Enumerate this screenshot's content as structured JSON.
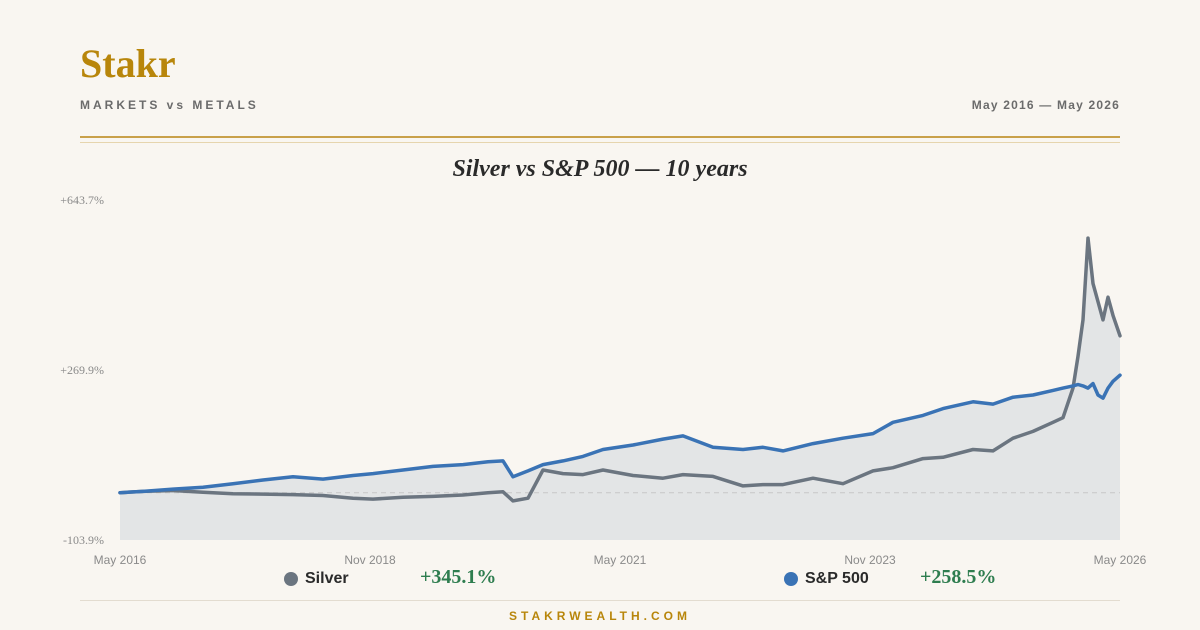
{
  "header": {
    "brand": "Stakr",
    "subtitle": "MARKETS vs METALS",
    "date_range": "May 2016 — May 2026"
  },
  "colors": {
    "brand": "#b8860b",
    "silver": "#6b7580",
    "sp500": "#3a73b5",
    "positive": "#2e7d4f"
  },
  "chart_data": {
    "type": "line",
    "title": "Silver vs S&P 500 — 10 years",
    "xlabel": "",
    "ylabel": "",
    "x_ticks": [
      "May 2016",
      "Nov 2018",
      "May 2021",
      "Nov 2023",
      "May 2026"
    ],
    "y_ticks": [
      "+643.7%",
      "+269.9%",
      "-103.9%"
    ],
    "ylim": [
      -103.9,
      643.7
    ],
    "x": [
      2016.37,
      2016.6,
      2016.9,
      2017.2,
      2017.5,
      2017.8,
      2018.1,
      2018.4,
      2018.7,
      2018.9,
      2019.2,
      2019.5,
      2019.8,
      2020.05,
      2020.2,
      2020.3,
      2020.45,
      2020.6,
      2020.8,
      2021.0,
      2021.2,
      2021.5,
      2021.8,
      2022.0,
      2022.3,
      2022.6,
      2022.8,
      2023.0,
      2023.3,
      2023.6,
      2023.9,
      2024.1,
      2024.4,
      2024.6,
      2024.9,
      2025.1,
      2025.3,
      2025.5,
      2025.7,
      2025.8,
      2025.9,
      2025.95,
      2026.0,
      2026.05,
      2026.1,
      2026.15,
      2026.2,
      2026.25,
      2026.3,
      2026.37
    ],
    "series": [
      {
        "name": "Silver",
        "values": [
          0,
          3,
          5,
          1,
          -2,
          -3,
          -4,
          -6,
          -12,
          -14,
          -10,
          -8,
          -5,
          0,
          2,
          -18,
          -12,
          50,
          42,
          40,
          50,
          38,
          32,
          40,
          36,
          15,
          18,
          18,
          32,
          20,
          48,
          55,
          75,
          78,
          95,
          92,
          120,
          135,
          155,
          165,
          230,
          300,
          380,
          560,
          460,
          420,
          380,
          430,
          390,
          345.1
        ]
      },
      {
        "name": "S&P 500",
        "values": [
          0,
          3,
          8,
          12,
          20,
          28,
          35,
          30,
          38,
          42,
          50,
          58,
          62,
          68,
          70,
          35,
          48,
          62,
          70,
          80,
          95,
          105,
          118,
          125,
          100,
          95,
          100,
          92,
          108,
          120,
          130,
          155,
          170,
          185,
          200,
          195,
          210,
          215,
          225,
          230,
          235,
          238,
          235,
          230,
          240,
          215,
          208,
          230,
          245,
          258.5
        ]
      }
    ]
  },
  "legend": [
    {
      "name": "Silver",
      "return": "+345.1%"
    },
    {
      "name": "S&P 500",
      "return": "+258.5%"
    }
  ],
  "footer": "STAKRWEALTH.COM"
}
